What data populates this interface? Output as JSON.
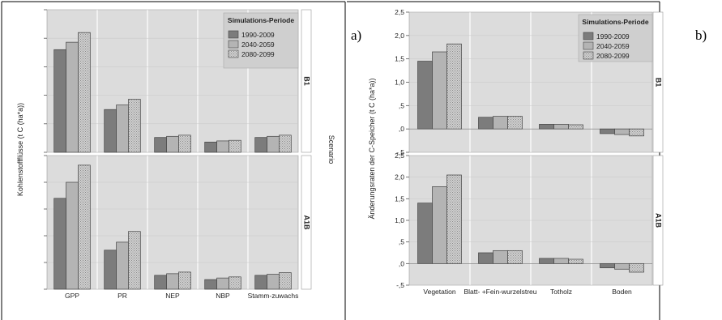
{
  "chart_data": [
    {
      "type": "bar",
      "panel_label": "a)",
      "ylabel": "Kohlenstoffflüsse (t C (ha*a))",
      "facet_label": "Scenario",
      "categories": [
        "GPP",
        "PR",
        "NEP",
        "NBP",
        "Stamm-zuwachs"
      ],
      "legend": {
        "title": "Simulations-Periode",
        "entries": [
          "1990-2009",
          "2040-2059",
          "2080-2099"
        ],
        "position": "top-right"
      },
      "ylim": [
        0,
        25
      ],
      "yticks": [],
      "panels": [
        {
          "name": "B1",
          "series": [
            {
              "name": "1990-2009",
              "values": [
                18.0,
                7.5,
                2.6,
                1.8,
                2.6
              ]
            },
            {
              "name": "2040-2059",
              "values": [
                19.3,
                8.3,
                2.8,
                2.0,
                2.8
              ]
            },
            {
              "name": "2080-2099",
              "values": [
                21.0,
                9.3,
                3.0,
                2.1,
                3.0
              ]
            }
          ]
        },
        {
          "name": "A1B",
          "series": [
            {
              "name": "1990-2009",
              "values": [
                17.0,
                7.3,
                2.6,
                1.8,
                2.6
              ]
            },
            {
              "name": "2040-2059",
              "values": [
                20.0,
                8.8,
                2.9,
                2.1,
                2.8
              ]
            },
            {
              "name": "2080-2099",
              "values": [
                23.2,
                10.8,
                3.2,
                2.3,
                3.1
              ]
            }
          ]
        }
      ]
    },
    {
      "type": "bar",
      "panel_label": "b)",
      "ylabel": "Änderungsraten der C-Speicher (t C (ha*a))",
      "categories": [
        "Vegetation",
        "Blatt- +Fein-wurzelstreu",
        "Totholz",
        "Boden"
      ],
      "legend": {
        "title": "Simulations-Periode",
        "entries": [
          "1990-2009",
          "2040-2059",
          "2080-2099"
        ],
        "position": "top-right"
      },
      "ylim": [
        -0.5,
        2.5
      ],
      "yticks": [
        "-,5",
        ",0",
        ",5",
        "1,0",
        "1,5",
        "2,0",
        "2,5"
      ],
      "panels": [
        {
          "name": "B1",
          "series": [
            {
              "name": "1990-2009",
              "values": [
                1.45,
                0.25,
                0.1,
                -0.1
              ]
            },
            {
              "name": "2040-2059",
              "values": [
                1.65,
                0.27,
                0.1,
                -0.12
              ]
            },
            {
              "name": "2080-2099",
              "values": [
                1.82,
                0.27,
                0.09,
                -0.15
              ]
            }
          ]
        },
        {
          "name": "A1B",
          "series": [
            {
              "name": "1990-2009",
              "values": [
                1.4,
                0.25,
                0.12,
                -0.1
              ]
            },
            {
              "name": "2040-2059",
              "values": [
                1.78,
                0.3,
                0.12,
                -0.13
              ]
            },
            {
              "name": "2080-2099",
              "values": [
                2.05,
                0.3,
                0.1,
                -0.2
              ]
            }
          ]
        }
      ]
    }
  ],
  "colors": {
    "series": [
      "#7c7c7c",
      "#b4b4b4",
      "#c9c9c9"
    ],
    "plot_bg": "#dcdcdc",
    "legend_bg": "#cfcfcf"
  }
}
